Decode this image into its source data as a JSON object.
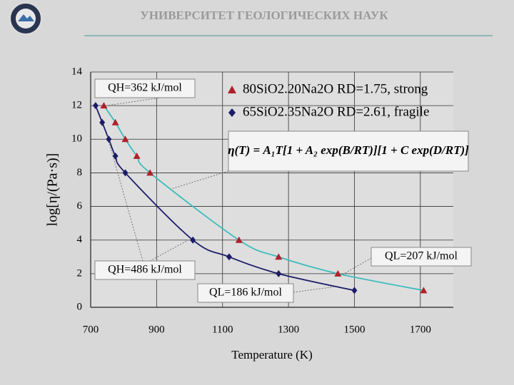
{
  "header": {
    "title": "УНИВЕРСИТЕТ ГЕОЛОГИЧЕСКИХ НАУК"
  },
  "chart_data": {
    "type": "scatter",
    "x_label": "Temperature (K)",
    "y_label": "log[η/(Pa·s)]",
    "xlim": [
      700,
      1800
    ],
    "xticks": [
      700,
      900,
      1100,
      1300,
      1500,
      1700
    ],
    "ylim": [
      0,
      14
    ],
    "yticks": [
      0,
      2,
      4,
      6,
      8,
      10,
      12,
      14
    ],
    "grid": true,
    "series": [
      {
        "name": "80SiO2.20Na2O RD=1.75, strong",
        "color": "#b0202a",
        "marker": "triangle",
        "curve_color": "#3cbcbc",
        "x": [
          740,
          775,
          805,
          840,
          880,
          1150,
          1270,
          1450,
          1710
        ],
        "values": [
          12,
          11,
          10,
          9,
          8,
          4,
          3,
          2,
          1
        ]
      },
      {
        "name": "65SiO2.35Na2O RD=2.61, fragile",
        "color": "#1c1c6a",
        "marker": "diamond",
        "curve_color": "#1c1c6a",
        "x": [
          715,
          735,
          755,
          775,
          805,
          1010,
          1120,
          1270,
          1500
        ],
        "values": [
          12,
          11,
          10,
          9,
          8,
          4,
          3,
          2,
          1
        ]
      }
    ],
    "formula": "η(T) = A₁T[1 + A₂ exp(B/RT)][1 + C exp(D/RT)]",
    "annotations": [
      "QH=362 kJ/mol",
      "QH=486 kJ/mol",
      "QL=186 kJ/mol",
      "QL=207 kJ/mol"
    ]
  }
}
